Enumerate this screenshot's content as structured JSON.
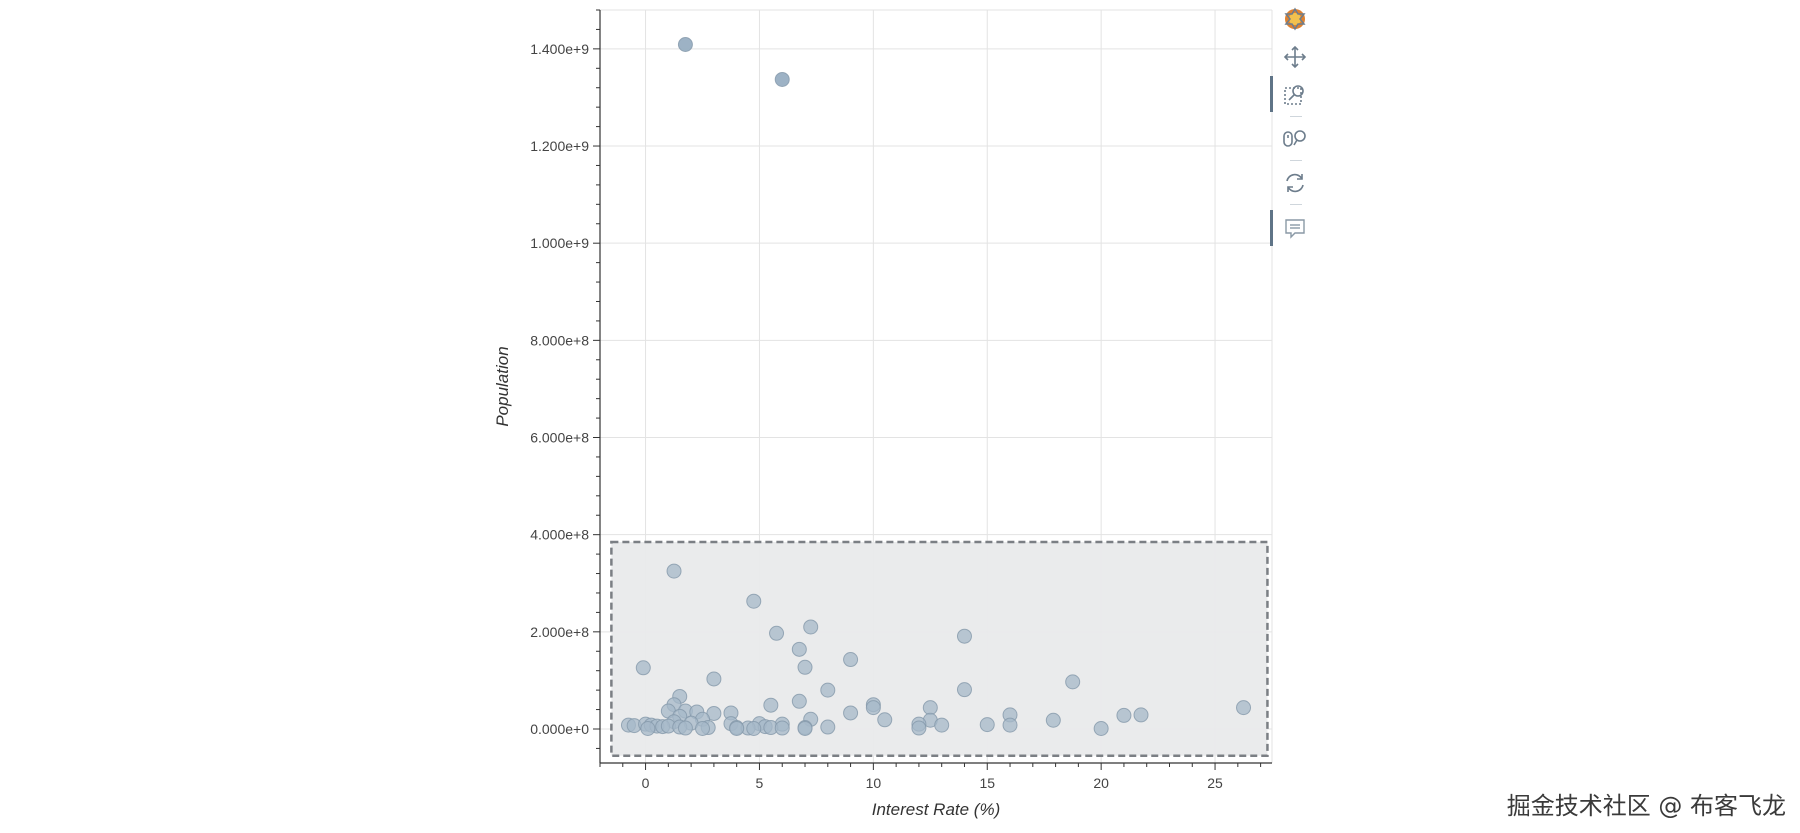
{
  "chart_data": {
    "type": "scatter",
    "title": "",
    "xlabel": "Interest Rate (%)",
    "ylabel": "Population",
    "xlim": [
      -2,
      27.5
    ],
    "ylim": [
      -70000000,
      1480000000
    ],
    "x_ticks": [
      0,
      5,
      10,
      15,
      20,
      25
    ],
    "x_tick_labels": [
      "0",
      "5",
      "10",
      "15",
      "20",
      "25"
    ],
    "y_ticks": [
      0,
      200000000,
      400000000,
      600000000,
      800000000,
      1000000000,
      1200000000,
      1400000000
    ],
    "y_tick_labels": [
      "0.000e+0",
      "2.000e+8",
      "4.000e+8",
      "6.000e+8",
      "8.000e+8",
      "1.000e+9",
      "1.200e+9",
      "1.400e+9"
    ],
    "grid": true,
    "selection_box": {
      "x": [
        -1.5,
        27.3
      ],
      "y": [
        -55000000,
        385000000
      ]
    },
    "marker_color": "#a6b8c8",
    "marker_color_selected": "#98aec2",
    "points": [
      {
        "x": 1.75,
        "y": 1409000000
      },
      {
        "x": 6.0,
        "y": 1337000000
      },
      {
        "x": 1.25,
        "y": 325000000
      },
      {
        "x": 4.75,
        "y": 263000000
      },
      {
        "x": 7.25,
        "y": 210000000
      },
      {
        "x": 5.75,
        "y": 197000000
      },
      {
        "x": 14.0,
        "y": 191000000
      },
      {
        "x": 6.75,
        "y": 164000000
      },
      {
        "x": 9.0,
        "y": 143000000
      },
      {
        "x": 7.0,
        "y": 127000000
      },
      {
        "x": -0.1,
        "y": 126000000
      },
      {
        "x": 3.0,
        "y": 103000000
      },
      {
        "x": 18.75,
        "y": 97000000
      },
      {
        "x": 14.0,
        "y": 81000000
      },
      {
        "x": 8.0,
        "y": 80000000
      },
      {
        "x": 1.5,
        "y": 67000000
      },
      {
        "x": 6.75,
        "y": 57000000
      },
      {
        "x": 1.25,
        "y": 50000000
      },
      {
        "x": 5.5,
        "y": 49000000
      },
      {
        "x": 10.0,
        "y": 50000000
      },
      {
        "x": 10.0,
        "y": 44000000
      },
      {
        "x": 12.5,
        "y": 44000000
      },
      {
        "x": 26.25,
        "y": 44000000
      },
      {
        "x": 1.0,
        "y": 37000000
      },
      {
        "x": 1.75,
        "y": 37000000
      },
      {
        "x": 2.25,
        "y": 35000000
      },
      {
        "x": 3.75,
        "y": 33000000
      },
      {
        "x": 9.0,
        "y": 33000000
      },
      {
        "x": 3.0,
        "y": 32000000
      },
      {
        "x": 16.0,
        "y": 29000000
      },
      {
        "x": 21.75,
        "y": 29000000
      },
      {
        "x": 21.0,
        "y": 28000000
      },
      {
        "x": 1.5,
        "y": 26000000
      },
      {
        "x": 2.5,
        "y": 20000000
      },
      {
        "x": 7.25,
        "y": 20000000
      },
      {
        "x": 10.5,
        "y": 19000000
      },
      {
        "x": 12.5,
        "y": 18000000
      },
      {
        "x": 17.9,
        "y": 18000000
      },
      {
        "x": 1.25,
        "y": 15000000
      },
      {
        "x": 2.0,
        "y": 12000000
      },
      {
        "x": 3.75,
        "y": 11000000
      },
      {
        "x": 5.0,
        "y": 11000000
      },
      {
        "x": 6.0,
        "y": 10000000
      },
      {
        "x": 12.0,
        "y": 10000000
      },
      {
        "x": 15.0,
        "y": 9000000
      },
      {
        "x": 16.0,
        "y": 8000000
      },
      {
        "x": 13.0,
        "y": 8000000
      },
      {
        "x": -0.75,
        "y": 8000000
      },
      {
        "x": -0.5,
        "y": 7000000
      },
      {
        "x": 0.0,
        "y": 10000000
      },
      {
        "x": 0.25,
        "y": 8000000
      },
      {
        "x": 0.5,
        "y": 6000000
      },
      {
        "x": 0.75,
        "y": 5000000
      },
      {
        "x": 1.0,
        "y": 6000000
      },
      {
        "x": 1.5,
        "y": 4000000
      },
      {
        "x": 2.75,
        "y": 3000000
      },
      {
        "x": 4.0,
        "y": 3000000
      },
      {
        "x": 4.5,
        "y": 2000000
      },
      {
        "x": 5.25,
        "y": 5000000
      },
      {
        "x": 5.5,
        "y": 3000000
      },
      {
        "x": 6.0,
        "y": 2000000
      },
      {
        "x": 7.0,
        "y": 3000000
      },
      {
        "x": 8.0,
        "y": 4000000
      },
      {
        "x": 12.0,
        "y": 2000000
      },
      {
        "x": 20.0,
        "y": 1000000
      },
      {
        "x": 0.1,
        "y": 1000000
      },
      {
        "x": 1.75,
        "y": 2000000
      },
      {
        "x": 2.5,
        "y": 1000000
      },
      {
        "x": 4.0,
        "y": 1000000
      },
      {
        "x": 4.75,
        "y": 1000000
      },
      {
        "x": 7.0,
        "y": 1000000
      }
    ]
  },
  "toolbar": {
    "tools": [
      "bokeh-logo",
      "pan-tool",
      "box-zoom-tool",
      "wheel-zoom-tool",
      "reset-tool",
      "hover-tool"
    ]
  },
  "watermark": "掘金技术社区 @ 布客飞龙"
}
